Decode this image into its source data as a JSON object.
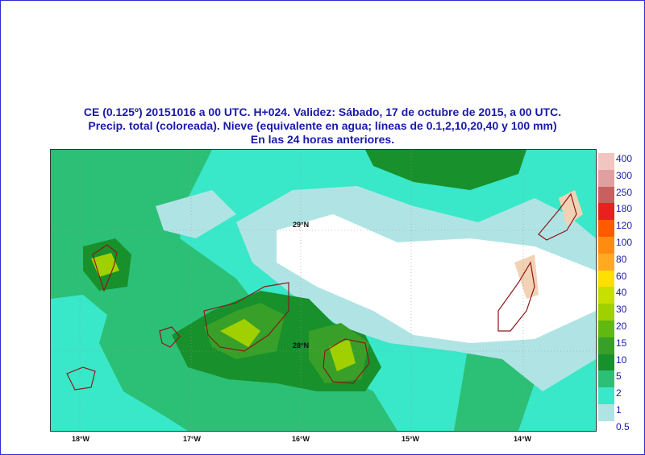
{
  "title": {
    "line1": "CE (0.125º) 20151016 a 00 UTC.  H+024. Validez: Sábado, 17 de octubre de 2015,  a  00 UTC.",
    "line2": "Precip. total (coloreada). Nieve (equivalente en agua; líneas de 0.1,2,10,20,40 y 100 mm)",
    "line3": "En las 24 horas anteriores."
  },
  "map": {
    "lon_labels": [
      "18°W",
      "17°W",
      "16°W",
      "15°W",
      "14°W"
    ],
    "lat_labels": [
      "29°N",
      "28°N"
    ]
  },
  "legend": {
    "levels": [
      "400",
      "300",
      "250",
      "180",
      "120",
      "100",
      "80",
      "60",
      "40",
      "30",
      "20",
      "15",
      "10",
      "5",
      "2",
      "1",
      "0.5"
    ],
    "colors": [
      "#f2c6c0",
      "#e0a0a0",
      "#c86060",
      "#e82020",
      "#ff5a00",
      "#ff8c10",
      "#ffaa20",
      "#ffe000",
      "#c8e000",
      "#a0d000",
      "#60b810",
      "#38a028",
      "#18902c",
      "#2cc076",
      "#38e8c8",
      "#b0e4e4",
      "#ffffff"
    ]
  }
}
